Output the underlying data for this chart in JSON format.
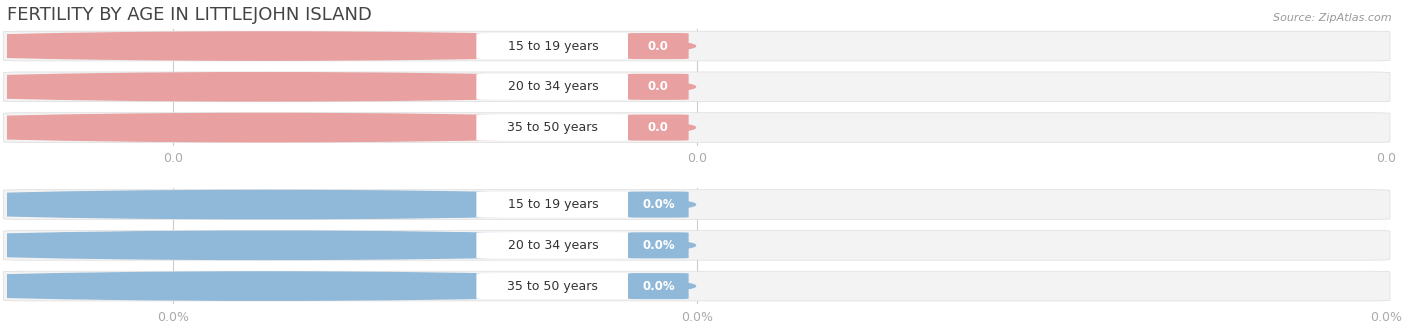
{
  "title": "FERTILITY BY AGE IN LITTLEJOHN ISLAND",
  "source": "Source: ZipAtlas.com",
  "top_labels": [
    "15 to 19 years",
    "20 to 34 years",
    "35 to 50 years"
  ],
  "bottom_labels": [
    "15 to 19 years",
    "20 to 34 years",
    "35 to 50 years"
  ],
  "top_value_labels": [
    "0.0",
    "0.0",
    "0.0"
  ],
  "bottom_value_labels": [
    "0.0%",
    "0.0%",
    "0.0%"
  ],
  "top_color": "#e8a0a0",
  "top_bg_color": "#f7eded",
  "bottom_color": "#90b8d8",
  "bottom_bg_color": "#edf3f8",
  "bar_full_bg": "#f2f2f2",
  "top_tick_labels": [
    "0.0",
    "0.0",
    "0.0"
  ],
  "bottom_tick_labels": [
    "0.0%",
    "0.0%",
    "0.0%"
  ],
  "tick_color": "#aaaaaa",
  "vline_color": "#cccccc",
  "fig_width": 14.06,
  "fig_height": 3.3,
  "title_fontsize": 13,
  "title_color": "#444444",
  "source_color": "#999999",
  "label_fontsize": 9,
  "value_fontsize": 8.5,
  "tick_fontsize": 9
}
